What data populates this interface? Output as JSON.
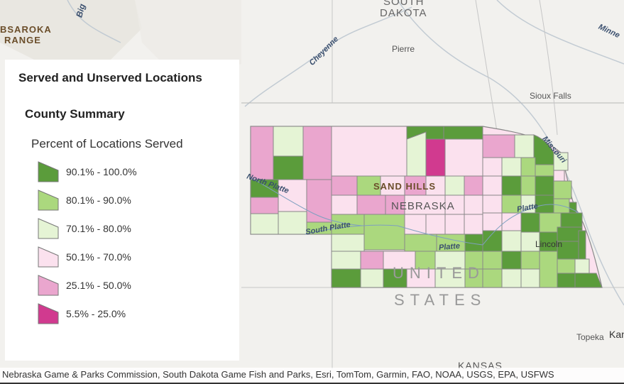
{
  "map": {
    "labels": {
      "absaroka": "BSAROKA",
      "range": "RANGE",
      "south": "SOUTH",
      "dakota": "DAKOTA",
      "pierre": "Pierre",
      "sioux_falls": "Sioux Falls",
      "cheyenne": "Cheyenne",
      "big": "Big",
      "minne": "Minne",
      "north_platte": "North Platte",
      "south_platte": "South Platte",
      "platte_center": "Platte",
      "platte_east": "Platte",
      "missouri": "Missouri",
      "sand_hills": "SAND HILLS",
      "nebraska": "NEBRASKA",
      "lincoln": "Lincoln",
      "united": "UNITED",
      "states": "STATES",
      "kansas": "KANSAS",
      "topeka": "Topeka",
      "kan": "Kan"
    },
    "class_colors": [
      "#5b9c3b",
      "#abd87e",
      "#e5f4d5",
      "#fbe1ee",
      "#eaa6ce",
      "#d13a8f"
    ]
  },
  "legend": {
    "title": "Served and Unserved Locations",
    "subtitle": "County Summary",
    "field": "Percent of Locations Served",
    "items": [
      {
        "label": "90.1% - 100.0%",
        "color": "#5b9c3b"
      },
      {
        "label": "80.1% - 90.0%",
        "color": "#abd87e"
      },
      {
        "label": "70.1% - 80.0%",
        "color": "#e5f4d5"
      },
      {
        "label": "50.1% - 70.0%",
        "color": "#fbe1ee"
      },
      {
        "label": "25.1% - 50.0%",
        "color": "#eaa6ce"
      },
      {
        "label": "5.5% - 25.0%",
        "color": "#d13a8f"
      }
    ]
  },
  "attribution": "Nebraska Game & Parks Commission, South Dakota Game Fish and Parks, Esri, TomTom, Garmin, FAO, NOAA, USGS, EPA, USFWS"
}
